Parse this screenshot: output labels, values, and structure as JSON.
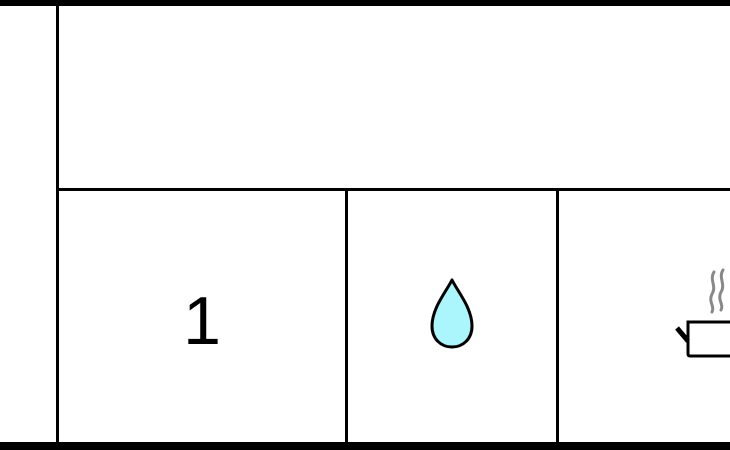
{
  "board": {
    "cells": [
      {
        "type": "number",
        "value": "1"
      },
      {
        "type": "icon",
        "icon": "water-drop-icon",
        "fill": "#aaf6fc"
      },
      {
        "type": "icon",
        "icon": "steaming-pot-icon",
        "steam_color": "#888888"
      }
    ]
  }
}
